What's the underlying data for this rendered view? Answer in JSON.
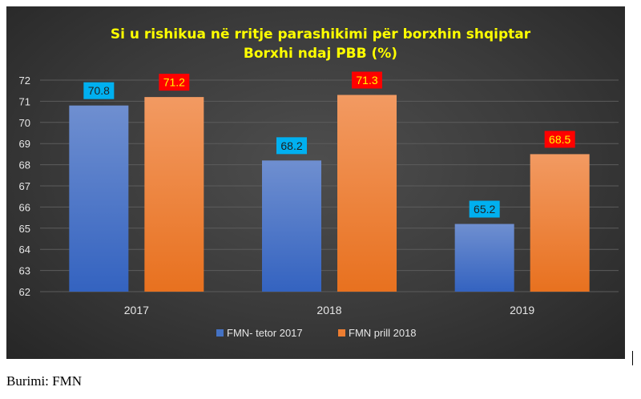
{
  "chart_data": {
    "type": "bar",
    "title": "Si u rishikua në rritje parashikimi për borxhin shqiptar",
    "subtitle": "Borxhi ndaj PBB (%)",
    "categories": [
      "2017",
      "2018",
      "2019"
    ],
    "series": [
      {
        "name": "FMN- tetor 2017",
        "values": [
          70.8,
          68.2,
          65.2
        ],
        "color": "#4472C4",
        "label_bg": "#00B0F0",
        "label_color": "#1f1f1f"
      },
      {
        "name": "FMN prill 2018",
        "values": [
          71.2,
          71.3,
          68.5
        ],
        "color": "#ED7D31",
        "label_bg": "#FF0000",
        "label_color": "#FFFF00"
      }
    ],
    "ylim": [
      62,
      72
    ],
    "yticks": [
      "62",
      "63",
      "64",
      "65",
      "66",
      "67",
      "68",
      "69",
      "70",
      "71",
      "72"
    ],
    "grid": true,
    "legend_position": "bottom",
    "title_color": "#FFFF00"
  },
  "source": "Burimi: FMN"
}
